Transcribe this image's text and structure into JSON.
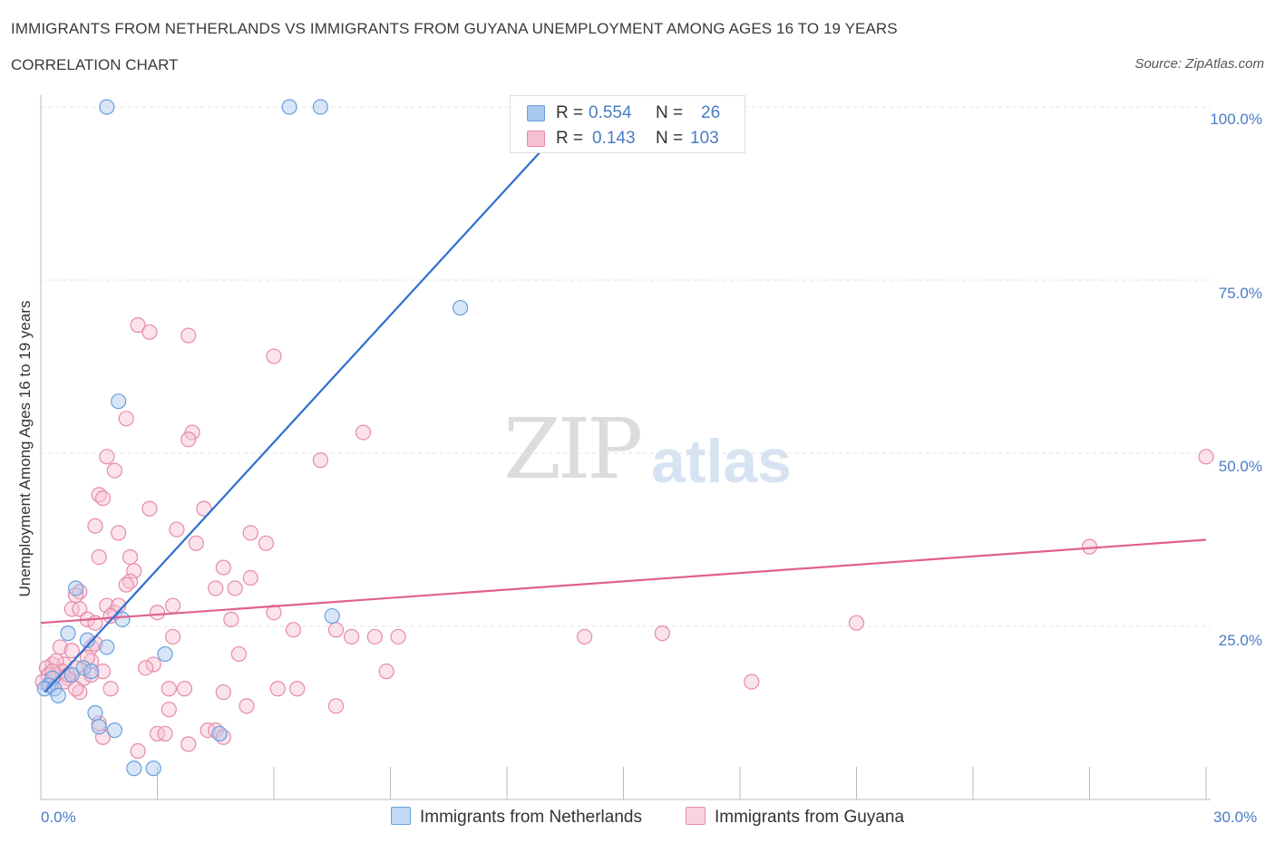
{
  "header": {
    "title": "IMMIGRANTS FROM NETHERLANDS VS IMMIGRANTS FROM GUYANA UNEMPLOYMENT AMONG AGES 16 TO 19 YEARS",
    "subtitle": "CORRELATION CHART",
    "source": "Source: ZipAtlas.com"
  },
  "watermark": {
    "zip": "ZIP",
    "atlas": "atlas"
  },
  "legend_top": {
    "rows": [
      {
        "r_label": "R =",
        "r_value": "0.554",
        "n_label": "N =",
        "n_value": "26",
        "color": "#a9c8f0",
        "border": "#6a9fdc"
      },
      {
        "r_label": "R =",
        "r_value": "0.143",
        "n_label": "N =",
        "n_value": "103",
        "color": "#f7c0d2",
        "border": "#e68aa9"
      }
    ]
  },
  "legend_bottom": [
    {
      "label": "Immigrants from Netherlands",
      "color": "#a9c8f0",
      "border": "#6a9fdc"
    },
    {
      "label": "Immigrants from Guyana",
      "color": "#f7c0d2",
      "border": "#e68aa9"
    }
  ],
  "chart_data": {
    "type": "scatter",
    "title": "IMMIGRANTS FROM NETHERLANDS VS IMMIGRANTS FROM GUYANA UNEMPLOYMENT AMONG AGES 16 TO 19 YEARS",
    "subtitle": "CORRELATION CHART",
    "xlabel": "",
    "ylabel": "Unemployment Among Ages 16 to 19 years",
    "xlim": [
      0,
      30
    ],
    "ylim": [
      0,
      100
    ],
    "x_tick_labels": [
      "0.0%",
      "30.0%"
    ],
    "y_tick_labels": [
      "25.0%",
      "50.0%",
      "75.0%",
      "100.0%"
    ],
    "y_ticks": [
      25,
      50,
      75,
      100
    ],
    "grid": true,
    "colors": {
      "netherlands": "#6a9fdc",
      "guyana": "#e68aa9",
      "netherlands_line": "#2f6fcf",
      "guyana_line": "#e0608e"
    },
    "series": [
      {
        "name": "Immigrants from Netherlands",
        "r": 0.554,
        "n": 26,
        "trend": {
          "x": [
            0.1,
            14.0
          ],
          "y": [
            15.5,
            100.5
          ]
        },
        "points": [
          [
            1.7,
            100.0
          ],
          [
            6.4,
            100.0
          ],
          [
            7.2,
            100.0
          ],
          [
            10.8,
            71.0
          ],
          [
            2.0,
            57.5
          ],
          [
            0.9,
            30.5
          ],
          [
            0.7,
            24.0
          ],
          [
            1.2,
            23.0
          ],
          [
            1.7,
            22.0
          ],
          [
            3.2,
            21.0
          ],
          [
            1.1,
            19.0
          ],
          [
            1.3,
            18.5
          ],
          [
            0.8,
            18.0
          ],
          [
            0.3,
            17.5
          ],
          [
            0.2,
            16.5
          ],
          [
            0.1,
            16.0
          ],
          [
            0.35,
            16.0
          ],
          [
            0.45,
            15.0
          ],
          [
            1.4,
            12.5
          ],
          [
            1.5,
            10.5
          ],
          [
            1.9,
            10.0
          ],
          [
            4.6,
            9.5
          ],
          [
            2.4,
            4.5
          ],
          [
            2.9,
            4.5
          ],
          [
            2.1,
            26.0
          ],
          [
            7.5,
            26.5
          ]
        ]
      },
      {
        "name": "Immigrants from Guyana",
        "r": 0.143,
        "n": 103,
        "trend": {
          "x": [
            0.0,
            30.0
          ],
          "y": [
            25.5,
            37.5
          ]
        },
        "points": [
          [
            2.5,
            68.5
          ],
          [
            2.8,
            67.5
          ],
          [
            3.8,
            67.0
          ],
          [
            6.0,
            64.0
          ],
          [
            2.2,
            55.0
          ],
          [
            3.9,
            53.0
          ],
          [
            8.3,
            53.0
          ],
          [
            3.8,
            52.0
          ],
          [
            1.7,
            49.5
          ],
          [
            7.2,
            49.0
          ],
          [
            30.0,
            49.5
          ],
          [
            1.9,
            47.5
          ],
          [
            1.5,
            44.0
          ],
          [
            1.6,
            43.5
          ],
          [
            2.8,
            42.0
          ],
          [
            4.2,
            42.0
          ],
          [
            1.4,
            39.5
          ],
          [
            3.5,
            39.0
          ],
          [
            2.0,
            38.5
          ],
          [
            5.4,
            38.5
          ],
          [
            4.0,
            37.0
          ],
          [
            5.8,
            37.0
          ],
          [
            27.0,
            36.5
          ],
          [
            1.5,
            35.0
          ],
          [
            2.3,
            35.0
          ],
          [
            4.7,
            33.5
          ],
          [
            2.4,
            33.0
          ],
          [
            5.4,
            32.0
          ],
          [
            2.3,
            31.5
          ],
          [
            2.2,
            31.0
          ],
          [
            4.5,
            30.5
          ],
          [
            5.0,
            30.5
          ],
          [
            1.0,
            30.0
          ],
          [
            0.9,
            29.5
          ],
          [
            3.4,
            28.0
          ],
          [
            1.7,
            28.0
          ],
          [
            0.8,
            27.5
          ],
          [
            1.0,
            27.5
          ],
          [
            3.0,
            27.0
          ],
          [
            6.0,
            27.0
          ],
          [
            1.9,
            27.0
          ],
          [
            1.2,
            26.0
          ],
          [
            1.4,
            25.5
          ],
          [
            4.9,
            26.0
          ],
          [
            21.0,
            25.5
          ],
          [
            7.6,
            24.5
          ],
          [
            6.5,
            24.5
          ],
          [
            16.0,
            24.0
          ],
          [
            8.6,
            23.5
          ],
          [
            8.0,
            23.5
          ],
          [
            14.0,
            23.5
          ],
          [
            9.2,
            23.5
          ],
          [
            3.4,
            23.5
          ],
          [
            1.3,
            22.0
          ],
          [
            0.5,
            22.0
          ],
          [
            0.8,
            21.5
          ],
          [
            5.1,
            21.0
          ],
          [
            1.3,
            20.0
          ],
          [
            0.6,
            19.5
          ],
          [
            0.3,
            19.5
          ],
          [
            0.15,
            19.0
          ],
          [
            2.9,
            19.5
          ],
          [
            2.7,
            19.0
          ],
          [
            1.6,
            18.5
          ],
          [
            8.9,
            18.5
          ],
          [
            0.2,
            18.0
          ],
          [
            0.4,
            18.0
          ],
          [
            1.1,
            17.5
          ],
          [
            0.7,
            17.5
          ],
          [
            0.05,
            17.0
          ],
          [
            1.3,
            18.0
          ],
          [
            0.6,
            17.0
          ],
          [
            0.25,
            16.5
          ],
          [
            18.3,
            17.0
          ],
          [
            1.8,
            16.0
          ],
          [
            3.3,
            16.0
          ],
          [
            3.7,
            16.0
          ],
          [
            4.7,
            15.5
          ],
          [
            6.1,
            16.0
          ],
          [
            6.6,
            16.0
          ],
          [
            1.0,
            15.5
          ],
          [
            0.9,
            16.0
          ],
          [
            3.3,
            13.0
          ],
          [
            5.3,
            13.5
          ],
          [
            7.6,
            13.5
          ],
          [
            1.5,
            11.0
          ],
          [
            4.3,
            10.0
          ],
          [
            4.5,
            10.0
          ],
          [
            3.0,
            9.5
          ],
          [
            3.2,
            9.5
          ],
          [
            4.7,
            9.0
          ],
          [
            1.6,
            9.0
          ],
          [
            3.8,
            8.0
          ],
          [
            2.5,
            7.0
          ],
          [
            1.4,
            22.5
          ],
          [
            0.4,
            20.0
          ],
          [
            0.55,
            18.5
          ],
          [
            0.7,
            18.0
          ],
          [
            2.0,
            28.0
          ],
          [
            1.8,
            26.5
          ],
          [
            1.2,
            20.5
          ],
          [
            0.9,
            19.0
          ],
          [
            0.3,
            18.5
          ]
        ]
      }
    ]
  }
}
